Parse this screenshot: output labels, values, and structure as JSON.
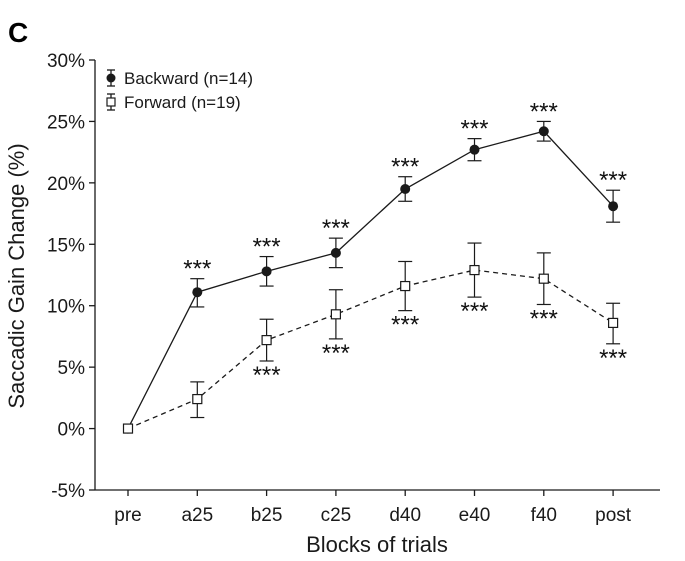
{
  "panel_label": "C",
  "chart_data": {
    "type": "line",
    "ylabel": "Saccadic Gain Change (%)",
    "xlabel": "Blocks of trials",
    "categories": [
      "pre",
      "a25",
      "b25",
      "c25",
      "d40",
      "e40",
      "f40",
      "post"
    ],
    "ylim": [
      -5,
      30
    ],
    "yticks": [
      -5,
      0,
      5,
      10,
      15,
      20,
      25,
      30
    ],
    "ytick_labels": [
      "-5%",
      "0%",
      "5%",
      "10%",
      "15%",
      "20%",
      "25%",
      "30%"
    ],
    "legend_position": "top-left",
    "series": [
      {
        "name": "Backward (n=14)",
        "marker": "filled-circle",
        "line": "solid",
        "color": "#1a1a1a",
        "values": [
          0,
          11.1,
          12.8,
          14.3,
          19.5,
          22.7,
          24.2,
          18.1
        ],
        "err_low": [
          0,
          9.9,
          11.6,
          13.1,
          18.5,
          21.8,
          23.4,
          16.8
        ],
        "err_high": [
          0,
          12.2,
          14.0,
          15.5,
          20.5,
          23.6,
          25.0,
          19.4
        ],
        "significance": [
          "",
          "***",
          "***",
          "***",
          "***",
          "***",
          "***",
          "***"
        ]
      },
      {
        "name": "Forward (n=19)",
        "marker": "open-square",
        "line": "dashed",
        "color": "#1a1a1a",
        "values": [
          0,
          2.4,
          7.2,
          9.3,
          11.6,
          12.9,
          12.2,
          8.6
        ],
        "err_low": [
          0,
          0.9,
          5.5,
          7.3,
          9.6,
          10.7,
          10.1,
          6.9
        ],
        "err_high": [
          0,
          3.8,
          8.9,
          11.3,
          13.6,
          15.1,
          14.3,
          10.2
        ],
        "significance": [
          "",
          "",
          "***",
          "***",
          "***",
          "***",
          "***",
          "***"
        ]
      }
    ]
  }
}
